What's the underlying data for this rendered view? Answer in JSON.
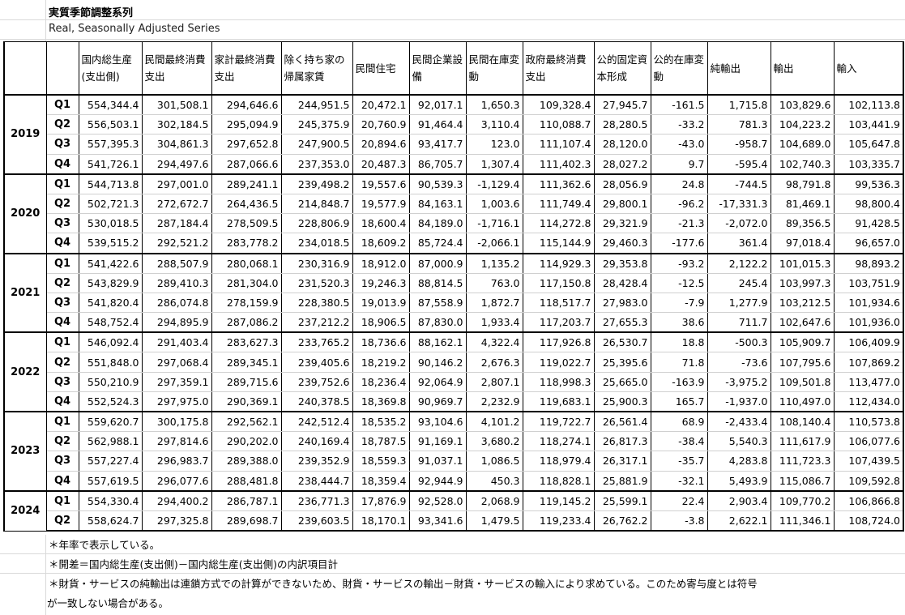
{
  "title": "実質季節調整系列",
  "subtitle": "Real, Seasonally Adjusted Series",
  "columns": [
    "国内総生産(支出側)",
    "民間最終消費支出",
    "家計最終消費支出",
    "除く持ち家の帰属家賃",
    "民間住宅",
    "民間企業設備",
    "民間在庫変動",
    "政府最終消費支出",
    "公的固定資本形成",
    "公的在庫変動",
    "純輸出",
    "輸出",
    "輸入"
  ],
  "years": [
    {
      "year": "2019",
      "rows": [
        {
          "q": "Q1",
          "v": [
            "554,344.4",
            "301,508.1",
            "294,646.6",
            "244,951.5",
            "20,472.1",
            "92,017.1",
            "1,650.3",
            "109,328.4",
            "27,945.7",
            "-161.5",
            "1,715.8",
            "103,829.6",
            "102,113.8"
          ]
        },
        {
          "q": "Q2",
          "v": [
            "556,503.1",
            "302,184.5",
            "295,094.9",
            "245,375.9",
            "20,760.9",
            "91,464.4",
            "3,110.4",
            "110,088.7",
            "28,280.5",
            "-33.2",
            "781.3",
            "104,223.2",
            "103,441.9"
          ]
        },
        {
          "q": "Q3",
          "v": [
            "557,395.3",
            "304,861.3",
            "297,652.8",
            "247,900.5",
            "20,894.6",
            "93,417.7",
            "123.0",
            "111,107.4",
            "28,120.0",
            "-43.0",
            "-958.7",
            "104,689.0",
            "105,647.8"
          ]
        },
        {
          "q": "Q4",
          "v": [
            "541,726.1",
            "294,497.6",
            "287,066.6",
            "237,353.0",
            "20,487.3",
            "86,705.7",
            "1,307.4",
            "111,402.3",
            "28,027.2",
            "9.7",
            "-595.4",
            "102,740.3",
            "103,335.7"
          ]
        }
      ]
    },
    {
      "year": "2020",
      "rows": [
        {
          "q": "Q1",
          "v": [
            "544,713.8",
            "297,001.0",
            "289,241.1",
            "239,498.2",
            "19,557.6",
            "90,539.3",
            "-1,129.4",
            "111,362.6",
            "28,056.9",
            "24.8",
            "-744.5",
            "98,791.8",
            "99,536.3"
          ]
        },
        {
          "q": "Q2",
          "v": [
            "502,721.3",
            "272,672.7",
            "264,436.5",
            "214,848.7",
            "19,577.9",
            "84,163.1",
            "1,003.6",
            "111,749.4",
            "29,800.1",
            "-96.2",
            "-17,331.3",
            "81,469.1",
            "98,800.4"
          ]
        },
        {
          "q": "Q3",
          "v": [
            "530,018.5",
            "287,184.4",
            "278,509.5",
            "228,806.9",
            "18,600.4",
            "84,189.0",
            "-1,716.1",
            "114,272.8",
            "29,321.9",
            "-21.3",
            "-2,072.0",
            "89,356.5",
            "91,428.5"
          ]
        },
        {
          "q": "Q4",
          "v": [
            "539,515.2",
            "292,521.2",
            "283,778.2",
            "234,018.5",
            "18,609.2",
            "85,724.4",
            "-2,066.1",
            "115,144.9",
            "29,460.3",
            "-177.6",
            "361.4",
            "97,018.4",
            "96,657.0"
          ]
        }
      ]
    },
    {
      "year": "2021",
      "rows": [
        {
          "q": "Q1",
          "v": [
            "541,422.6",
            "288,507.9",
            "280,068.1",
            "230,316.9",
            "18,912.0",
            "87,000.9",
            "1,135.2",
            "114,929.3",
            "29,353.8",
            "-93.2",
            "2,122.2",
            "101,015.3",
            "98,893.2"
          ]
        },
        {
          "q": "Q2",
          "v": [
            "543,829.9",
            "289,410.3",
            "281,304.0",
            "231,520.3",
            "19,246.3",
            "88,814.5",
            "763.0",
            "117,150.8",
            "28,428.4",
            "-12.5",
            "245.4",
            "103,997.3",
            "103,751.9"
          ]
        },
        {
          "q": "Q3",
          "v": [
            "541,820.4",
            "286,074.8",
            "278,159.9",
            "228,380.5",
            "19,013.9",
            "87,558.9",
            "1,872.7",
            "118,517.7",
            "27,983.0",
            "-7.9",
            "1,277.9",
            "103,212.5",
            "101,934.6"
          ]
        },
        {
          "q": "Q4",
          "v": [
            "548,752.4",
            "294,895.9",
            "287,086.2",
            "237,212.2",
            "18,906.5",
            "87,830.0",
            "1,933.4",
            "117,203.7",
            "27,655.3",
            "38.6",
            "711.7",
            "102,647.6",
            "101,936.0"
          ]
        }
      ]
    },
    {
      "year": "2022",
      "rows": [
        {
          "q": "Q1",
          "v": [
            "546,092.4",
            "291,403.4",
            "283,627.3",
            "233,765.2",
            "18,736.6",
            "88,162.1",
            "4,322.4",
            "117,926.8",
            "26,530.7",
            "18.8",
            "-500.3",
            "105,909.7",
            "106,409.9"
          ]
        },
        {
          "q": "Q2",
          "v": [
            "551,848.0",
            "297,068.4",
            "289,345.1",
            "239,405.6",
            "18,219.2",
            "90,146.2",
            "2,676.3",
            "119,022.7",
            "25,395.6",
            "71.8",
            "-73.6",
            "107,795.6",
            "107,869.2"
          ]
        },
        {
          "q": "Q3",
          "v": [
            "550,210.9",
            "297,359.1",
            "289,715.6",
            "239,752.6",
            "18,236.4",
            "92,064.9",
            "2,807.1",
            "118,998.3",
            "25,665.0",
            "-163.9",
            "-3,975.2",
            "109,501.8",
            "113,477.0"
          ]
        },
        {
          "q": "Q4",
          "v": [
            "552,524.3",
            "297,975.0",
            "290,369.1",
            "240,378.5",
            "18,369.8",
            "90,969.7",
            "2,232.9",
            "119,683.1",
            "25,900.3",
            "165.7",
            "-1,937.0",
            "110,497.0",
            "112,434.0"
          ]
        }
      ]
    },
    {
      "year": "2023",
      "rows": [
        {
          "q": "Q1",
          "v": [
            "559,620.7",
            "300,175.8",
            "292,562.1",
            "242,512.4",
            "18,535.2",
            "93,104.6",
            "4,101.2",
            "119,722.7",
            "26,561.4",
            "68.9",
            "-2,433.4",
            "108,140.4",
            "110,573.8"
          ]
        },
        {
          "q": "Q2",
          "v": [
            "562,988.1",
            "297,814.6",
            "290,202.0",
            "240,169.4",
            "18,787.5",
            "91,169.1",
            "3,680.2",
            "118,274.1",
            "26,817.3",
            "-38.4",
            "5,540.3",
            "111,617.9",
            "106,077.6"
          ]
        },
        {
          "q": "Q3",
          "v": [
            "557,227.4",
            "296,983.7",
            "289,388.0",
            "239,352.9",
            "18,559.3",
            "91,037.1",
            "1,086.5",
            "118,979.4",
            "26,317.1",
            "-35.7",
            "4,283.8",
            "111,723.3",
            "107,439.5"
          ]
        },
        {
          "q": "Q4",
          "v": [
            "557,619.5",
            "296,077.6",
            "288,481.8",
            "238,444.7",
            "18,359.4",
            "92,944.9",
            "450.3",
            "118,828.1",
            "25,881.9",
            "-32.1",
            "5,493.9",
            "115,086.7",
            "109,592.8"
          ]
        }
      ]
    },
    {
      "year": "2024",
      "rows": [
        {
          "q": "Q1",
          "v": [
            "554,330.4",
            "294,400.2",
            "286,787.1",
            "236,771.3",
            "17,876.9",
            "92,528.0",
            "2,068.9",
            "119,145.2",
            "25,599.1",
            "22.4",
            "2,903.4",
            "109,770.2",
            "106,866.8"
          ]
        },
        {
          "q": "Q2",
          "v": [
            "558,624.7",
            "297,325.8",
            "289,698.7",
            "239,603.5",
            "18,170.1",
            "93,341.6",
            "1,479.5",
            "119,233.4",
            "26,762.2",
            "-3.8",
            "2,622.1",
            "111,346.1",
            "108,724.0"
          ]
        }
      ]
    }
  ],
  "notes": [
    "＊年率で表示している。",
    "＊開差＝国内総生産(支出側)－国内総生産(支出側)の内訳項目計",
    "＊財貨・サービスの純輸出は連鎖方式での計算ができないため、財貨・サービスの輸出－財貨・サービスの輸入により求めている。このため寄与度とは符号",
    "が一致しない場合がある。"
  ]
}
